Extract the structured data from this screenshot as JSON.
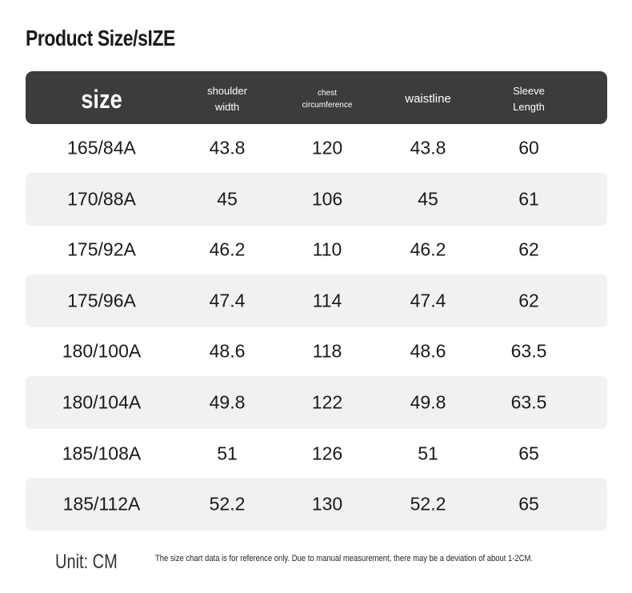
{
  "title": "Product Size/sIZE",
  "table": {
    "header": [
      "size",
      "shoulder width",
      "chest circumference",
      "waistline",
      "Sleeve Length"
    ],
    "rows": [
      [
        "165/84A",
        "43.8",
        "120",
        "43.8",
        "60"
      ],
      [
        "170/88A",
        "45",
        "106",
        "45",
        "61"
      ],
      [
        "175/92A",
        "46.2",
        "110",
        "46.2",
        "62"
      ],
      [
        "175/96A",
        "47.4",
        "114",
        "47.4",
        "62"
      ],
      [
        "180/100A",
        "48.6",
        "118",
        "48.6",
        "63.5"
      ],
      [
        "180/104A",
        "49.8",
        "122",
        "49.8",
        "63.5"
      ],
      [
        "185/108A",
        "51",
        "126",
        "51",
        "65"
      ],
      [
        "185/112A",
        "52.2",
        "130",
        "52.2",
        "65"
      ]
    ]
  },
  "footer": {
    "unit": "Unit: CM",
    "note": "The size chart data is for reference only. Due to manual measurement, there may be a deviation of about 1-2CM."
  }
}
